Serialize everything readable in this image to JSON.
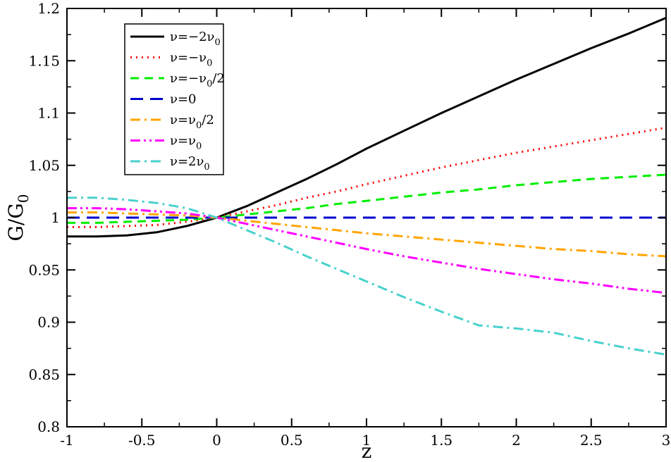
{
  "chart_data": {
    "type": "line",
    "xlabel": "z",
    "ylabel": {
      "main": "G/G",
      "sub": "0"
    },
    "xlim": [
      -1,
      3
    ],
    "ylim": [
      0.8,
      1.2
    ],
    "xticks": [
      -1,
      -0.5,
      0,
      0.5,
      1,
      1.5,
      2,
      2.5,
      3
    ],
    "xtick_labels": [
      "-1",
      "-0.5",
      "0",
      "0.5",
      "1",
      "1.5",
      "2",
      "2.5",
      "3"
    ],
    "yticks": [
      0.8,
      0.85,
      0.9,
      0.95,
      1.0,
      1.05,
      1.1,
      1.15,
      1.2
    ],
    "ytick_labels": [
      "0.8",
      "0.85",
      "0.9",
      "0.95",
      "1",
      "1.05",
      "1.1",
      "1.15",
      "1.2"
    ],
    "grid": false,
    "legend_position": "top-left",
    "series": [
      {
        "name": "ν=−2ν0",
        "legend": {
          "main": "ν=−2ν",
          "sub": "0",
          "tail": ""
        },
        "color": "#000000",
        "dash": "solid",
        "x": [
          -1,
          -0.8,
          -0.6,
          -0.4,
          -0.2,
          0,
          0.2,
          0.4,
          0.6,
          0.8,
          1.0,
          1.25,
          1.5,
          1.75,
          2.0,
          2.25,
          2.5,
          2.75,
          3.0
        ],
        "y": [
          0.982,
          0.982,
          0.983,
          0.986,
          0.992,
          1.0,
          1.011,
          1.024,
          1.037,
          1.051,
          1.066,
          1.083,
          1.1,
          1.116,
          1.132,
          1.147,
          1.162,
          1.176,
          1.191
        ]
      },
      {
        "name": "ν=−ν0",
        "legend": {
          "main": "ν=−ν",
          "sub": "0",
          "tail": ""
        },
        "color": "#ff0000",
        "dash": "dotted",
        "x": [
          -1,
          -0.8,
          -0.6,
          -0.4,
          -0.2,
          0,
          0.2,
          0.4,
          0.6,
          0.8,
          1.0,
          1.25,
          1.5,
          1.75,
          2.0,
          2.25,
          2.5,
          2.75,
          3.0
        ],
        "y": [
          0.991,
          0.991,
          0.992,
          0.993,
          0.996,
          1.0,
          1.006,
          1.012,
          1.019,
          1.025,
          1.032,
          1.04,
          1.048,
          1.055,
          1.062,
          1.068,
          1.074,
          1.08,
          1.086
        ]
      },
      {
        "name": "ν=−ν0/2",
        "legend": {
          "main": "ν=−ν",
          "sub": "0",
          "tail": "/2"
        },
        "color": "#00ee00",
        "dash": "dashed",
        "x": [
          -1,
          -0.8,
          -0.6,
          -0.4,
          -0.2,
          0,
          0.2,
          0.4,
          0.6,
          0.8,
          1.0,
          1.25,
          1.5,
          1.75,
          2.0,
          2.25,
          2.5,
          2.75,
          3.0
        ],
        "y": [
          0.995,
          0.995,
          0.996,
          0.997,
          0.998,
          1.0,
          1.003,
          1.006,
          1.009,
          1.013,
          1.016,
          1.02,
          1.024,
          1.027,
          1.031,
          1.034,
          1.037,
          1.039,
          1.041
        ]
      },
      {
        "name": "ν=0",
        "legend": {
          "main": "ν=0",
          "sub": "",
          "tail": ""
        },
        "color": "#0000cc",
        "dash": "longdash",
        "x": [
          -1,
          0,
          1,
          2,
          3
        ],
        "y": [
          1.0,
          1.0,
          1.0,
          1.0,
          1.0
        ]
      },
      {
        "name": "ν=ν0/2",
        "legend": {
          "main": "ν=ν",
          "sub": "0",
          "tail": "/2"
        },
        "color": "#ffa500",
        "dash": "dashdot",
        "x": [
          -1,
          -0.8,
          -0.6,
          -0.4,
          -0.2,
          0,
          0.2,
          0.4,
          0.6,
          0.8,
          1.0,
          1.25,
          1.5,
          1.75,
          2.0,
          2.25,
          2.5,
          2.75,
          3.0
        ],
        "y": [
          1.005,
          1.005,
          1.004,
          1.003,
          1.002,
          1.0,
          0.997,
          0.994,
          0.991,
          0.988,
          0.985,
          0.982,
          0.979,
          0.976,
          0.973,
          0.97,
          0.968,
          0.965,
          0.963
        ]
      },
      {
        "name": "ν=ν0",
        "legend": {
          "main": "ν=ν",
          "sub": "0",
          "tail": ""
        },
        "color": "#ff00ff",
        "dash": "dashdotdot",
        "x": [
          -1,
          -0.8,
          -0.6,
          -0.4,
          -0.2,
          0,
          0.2,
          0.4,
          0.6,
          0.8,
          1.0,
          1.25,
          1.5,
          1.75,
          2.0,
          2.25,
          2.5,
          2.75,
          3.0
        ],
        "y": [
          1.009,
          1.009,
          1.008,
          1.006,
          1.004,
          1.0,
          0.994,
          0.988,
          0.982,
          0.976,
          0.97,
          0.963,
          0.957,
          0.951,
          0.946,
          0.941,
          0.937,
          0.932,
          0.928
        ]
      },
      {
        "name": "ν=2ν0",
        "legend": {
          "main": "ν=2ν",
          "sub": "0",
          "tail": ""
        },
        "color": "#48d1cc",
        "dash": "dashdot",
        "x": [
          -1,
          -0.8,
          -0.6,
          -0.4,
          -0.2,
          0,
          0.2,
          0.4,
          0.6,
          0.8,
          1.0,
          1.25,
          1.5,
          1.75,
          2.0,
          2.25,
          2.5,
          2.75,
          3.0
        ],
        "y": [
          1.019,
          1.019,
          1.017,
          1.014,
          1.009,
          1.0,
          0.988,
          0.976,
          0.963,
          0.951,
          0.939,
          0.924,
          0.91,
          0.897,
          0.894,
          0.89,
          0.882,
          0.875,
          0.869
        ]
      }
    ]
  }
}
